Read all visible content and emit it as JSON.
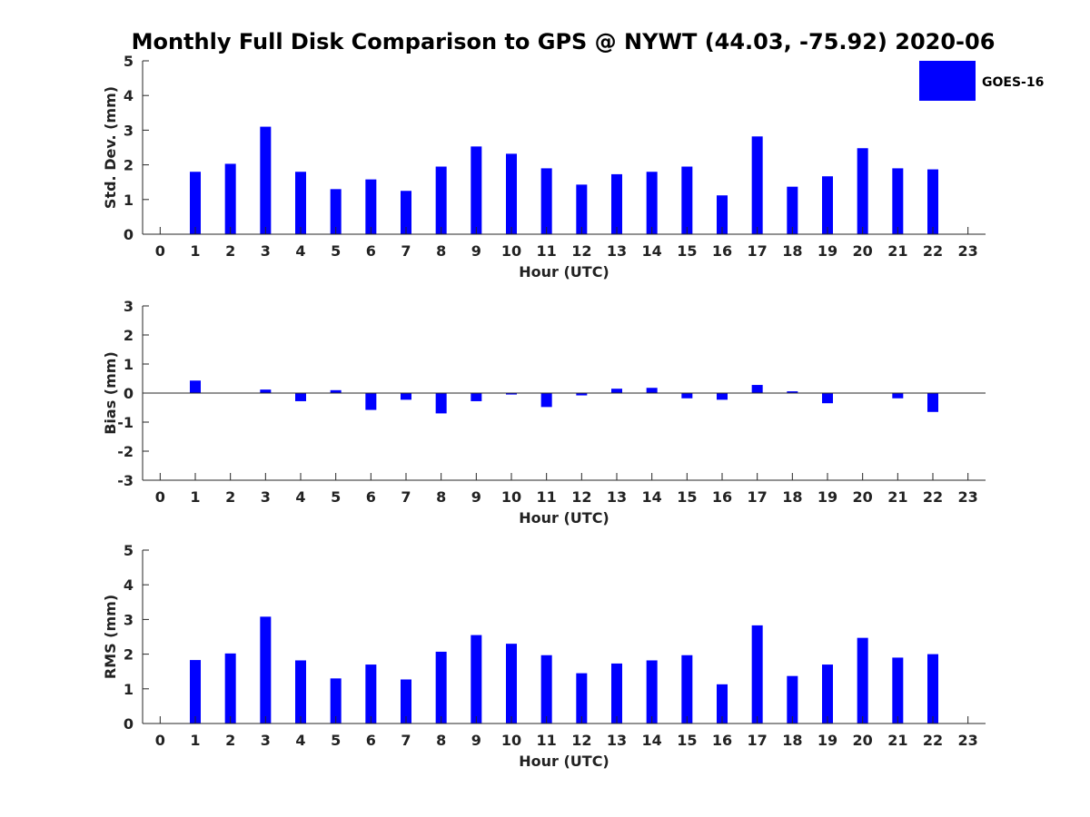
{
  "title": "Monthly Full Disk Comparison to GPS @ NYWT (44.03, -75.92) 2020-06",
  "legend": {
    "label": "GOES-16",
    "color": "#0000ff"
  },
  "chart_data": [
    {
      "type": "bar",
      "id": "std",
      "title": "",
      "xlabel": "Hour (UTC)",
      "ylabel": "Std. Dev. (mm)",
      "xlim": [
        -0.5,
        23.5
      ],
      "ylim": [
        0,
        5
      ],
      "yticks": [
        0,
        1,
        2,
        3,
        4,
        5
      ],
      "xticks": [
        0,
        1,
        2,
        3,
        4,
        5,
        6,
        7,
        8,
        9,
        10,
        11,
        12,
        13,
        14,
        15,
        16,
        17,
        18,
        19,
        20,
        21,
        22,
        23
      ],
      "hours": [
        1,
        2,
        3,
        4,
        5,
        6,
        7,
        8,
        9,
        10,
        11,
        12,
        13,
        14,
        15,
        16,
        17,
        18,
        19,
        20,
        21,
        22
      ],
      "values": [
        1.8,
        2.03,
        3.1,
        1.8,
        1.3,
        1.58,
        1.25,
        1.95,
        2.53,
        2.32,
        1.9,
        1.43,
        1.73,
        1.8,
        1.95,
        1.12,
        2.82,
        1.37,
        1.67,
        2.48,
        1.9,
        1.87
      ],
      "series_name": "GOES-16"
    },
    {
      "type": "bar",
      "id": "bias",
      "title": "",
      "xlabel": "Hour (UTC)",
      "ylabel": "Bias (mm)",
      "xlim": [
        -0.5,
        23.5
      ],
      "ylim": [
        -3,
        3
      ],
      "yticks": [
        -3,
        -2,
        -1,
        0,
        1,
        2,
        3
      ],
      "xticks": [
        0,
        1,
        2,
        3,
        4,
        5,
        6,
        7,
        8,
        9,
        10,
        11,
        12,
        13,
        14,
        15,
        16,
        17,
        18,
        19,
        20,
        21,
        22,
        23
      ],
      "hours": [
        1,
        2,
        3,
        4,
        5,
        6,
        7,
        8,
        9,
        10,
        11,
        12,
        13,
        14,
        15,
        16,
        17,
        18,
        19,
        20,
        21,
        22
      ],
      "values": [
        0.43,
        0.0,
        0.12,
        -0.28,
        0.1,
        -0.58,
        -0.23,
        -0.7,
        -0.28,
        -0.05,
        -0.48,
        -0.08,
        0.15,
        0.18,
        -0.18,
        -0.23,
        0.28,
        0.06,
        -0.35,
        0.0,
        -0.18,
        -0.65
      ],
      "series_name": "GOES-16"
    },
    {
      "type": "bar",
      "id": "rms",
      "title": "",
      "xlabel": "Hour (UTC)",
      "ylabel": "RMS (mm)",
      "xlim": [
        -0.5,
        23.5
      ],
      "ylim": [
        0,
        5
      ],
      "yticks": [
        0,
        1,
        2,
        3,
        4,
        5
      ],
      "xticks": [
        0,
        1,
        2,
        3,
        4,
        5,
        6,
        7,
        8,
        9,
        10,
        11,
        12,
        13,
        14,
        15,
        16,
        17,
        18,
        19,
        20,
        21,
        22,
        23
      ],
      "hours": [
        1,
        2,
        3,
        4,
        5,
        6,
        7,
        8,
        9,
        10,
        11,
        12,
        13,
        14,
        15,
        16,
        17,
        18,
        19,
        20,
        21,
        22
      ],
      "values": [
        1.83,
        2.02,
        3.08,
        1.82,
        1.3,
        1.7,
        1.27,
        2.07,
        2.55,
        2.3,
        1.97,
        1.45,
        1.73,
        1.82,
        1.97,
        1.13,
        2.83,
        1.37,
        1.7,
        2.47,
        1.9,
        2.0
      ],
      "series_name": "GOES-16"
    }
  ]
}
